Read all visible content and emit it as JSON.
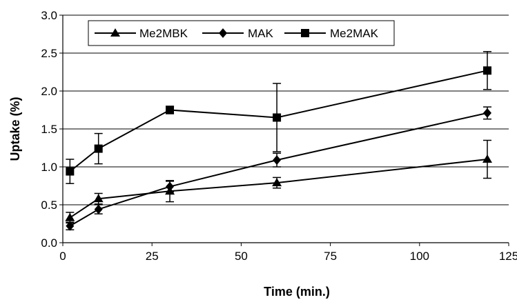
{
  "chart_data": {
    "type": "line",
    "xlabel": "Time (min.)",
    "ylabel": "Uptake (%)",
    "xlim": [
      0,
      125
    ],
    "ylim": [
      0.0,
      3.0
    ],
    "xticks": [
      "0",
      "25",
      "50",
      "75",
      "100",
      "125"
    ],
    "yticks": [
      "0.0",
      "0.5",
      "1.0",
      "1.5",
      "2.0",
      "2.5",
      "3.0"
    ],
    "grid": "horizontal",
    "legend_position": "top-left",
    "series": [
      {
        "name": "Me2MBK",
        "marker": "triangle",
        "x": [
          2,
          10,
          30,
          60,
          119
        ],
        "y": [
          0.33,
          0.58,
          0.68,
          0.79,
          1.1
        ],
        "err": [
          0.07,
          0.07,
          0.14,
          0.07,
          0.25
        ]
      },
      {
        "name": "MAK",
        "marker": "diamond",
        "x": [
          2,
          10,
          30,
          60,
          119
        ],
        "y": [
          0.22,
          0.44,
          0.74,
          1.09,
          1.71
        ],
        "err": [
          0.05,
          0.06,
          0.07,
          0.09,
          0.08
        ]
      },
      {
        "name": "Me2MAK",
        "marker": "square",
        "x": [
          2,
          10,
          30,
          60,
          119
        ],
        "y": [
          0.94,
          1.24,
          1.75,
          1.65,
          2.27
        ],
        "err": [
          0.16,
          0.2,
          0.05,
          0.45,
          0.25
        ]
      }
    ]
  }
}
